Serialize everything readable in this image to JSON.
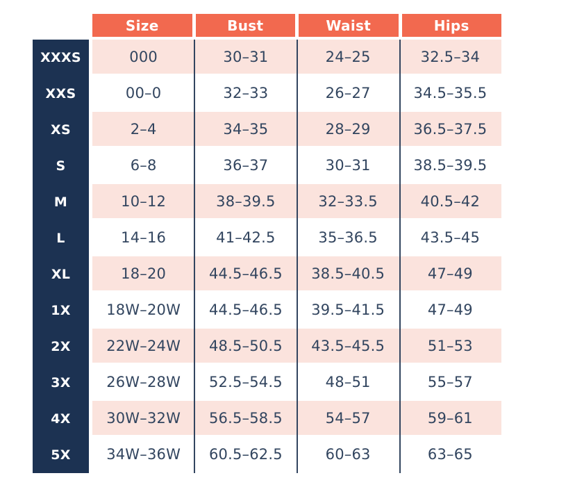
{
  "colors": {
    "header_bg": "#F2694F",
    "header_text": "#FFFFFF",
    "sidebar_bg": "#1C3252",
    "row_pink": "#FBE3DD",
    "row_white": "#FFFFFF",
    "text_dark": "#32455F",
    "divider": "#32455F"
  },
  "chart_data": {
    "type": "table",
    "columns": [
      "Size",
      "Bust",
      "Waist",
      "Hips"
    ],
    "row_labels": [
      "XXXS",
      "XXS",
      "XS",
      "S",
      "M",
      "L",
      "XL",
      "1X",
      "2X",
      "3X",
      "4X",
      "5X"
    ],
    "rows": [
      {
        "label": "XXXS",
        "size": "000",
        "bust": "30–31",
        "waist": "24–25",
        "hips": "32.5–34"
      },
      {
        "label": "XXS",
        "size": "00–0",
        "bust": "32–33",
        "waist": "26–27",
        "hips": "34.5–35.5"
      },
      {
        "label": "XS",
        "size": "2–4",
        "bust": "34–35",
        "waist": "28–29",
        "hips": "36.5–37.5"
      },
      {
        "label": "S",
        "size": "6–8",
        "bust": "36–37",
        "waist": "30–31",
        "hips": "38.5–39.5"
      },
      {
        "label": "M",
        "size": "10–12",
        "bust": "38–39.5",
        "waist": "32–33.5",
        "hips": "40.5–42"
      },
      {
        "label": "L",
        "size": "14–16",
        "bust": "41–42.5",
        "waist": "35–36.5",
        "hips": "43.5–45"
      },
      {
        "label": "XL",
        "size": "18–20",
        "bust": "44.5–46.5",
        "waist": "38.5–40.5",
        "hips": "47–49"
      },
      {
        "label": "1X",
        "size": "18W–20W",
        "bust": "44.5–46.5",
        "waist": "39.5–41.5",
        "hips": "47–49"
      },
      {
        "label": "2X",
        "size": "22W–24W",
        "bust": "48.5–50.5",
        "waist": "43.5–45.5",
        "hips": "51–53"
      },
      {
        "label": "3X",
        "size": "26W–28W",
        "bust": "52.5–54.5",
        "waist": "48–51",
        "hips": "55–57"
      },
      {
        "label": "4X",
        "size": "30W–32W",
        "bust": "56.5–58.5",
        "waist": "54–57",
        "hips": "59–61"
      },
      {
        "label": "5X",
        "size": "34W–36W",
        "bust": "60.5–62.5",
        "waist": "60–63",
        "hips": "63–65"
      }
    ]
  }
}
